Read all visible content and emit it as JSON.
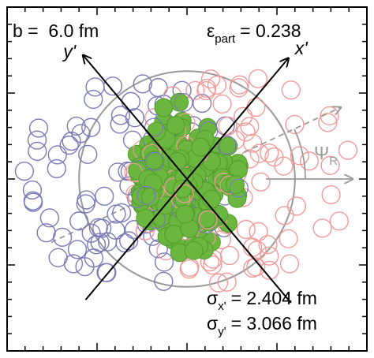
{
  "chart_data": {
    "type": "scatter",
    "xlim": [
      -10,
      10
    ],
    "ylim": [
      -10,
      10
    ],
    "grid": false,
    "colors": {
      "projectile_a": "#7a7ab8",
      "projectile_b": "#f29a9a",
      "participants": "#6ab63e",
      "participant_edge": "#4f9a2b",
      "overlap_circle": "#9a9a9a",
      "axes": "#000000",
      "reaction_plane": "#9a9a9a"
    },
    "impact_parameter_label": "b =  6.0 fm",
    "eccentricity": {
      "symbol": "ε",
      "subscript": "part",
      "value": "= 0.238"
    },
    "sigma_x": {
      "symbol": "σ",
      "subscript": "x'",
      "value": "= 2.404 fm"
    },
    "sigma_y": {
      "symbol": "σ",
      "subscript": "y'",
      "value": "= 3.066 fm"
    },
    "reaction_plane_label": {
      "symbol": "Ψ",
      "subscript": "R"
    },
    "rotated_axes": [
      {
        "name": "x'",
        "angle_deg": 50
      },
      {
        "name": "y'",
        "angle_deg": 130
      }
    ],
    "overlap_radius": 6.0,
    "nucleus_centers": {
      "projectile_a": [
        -3.0,
        0.0
      ],
      "projectile_b": [
        3.0,
        0.0
      ]
    },
    "participant_ellipse": {
      "center": [
        -0.3,
        -0.6
      ],
      "sx": 3.0,
      "sy": 2.8
    },
    "nucleon_radius": 0.5,
    "n_spectators_a": 80,
    "n_spectators_b": 80,
    "n_participants": 230
  }
}
